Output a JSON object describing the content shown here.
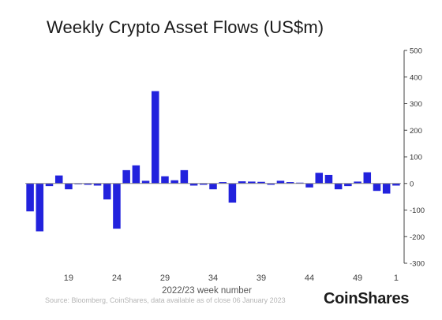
{
  "chart_data": {
    "type": "bar",
    "title": "Weekly Crypto Asset Flows (US$m)",
    "xlabel": "2022/23 week number",
    "ylabel": "",
    "ylim": [
      -300,
      500
    ],
    "yticks": [
      -300,
      -200,
      -100,
      0,
      100,
      200,
      300,
      400,
      500
    ],
    "xtick_labels": [
      "19",
      "24",
      "29",
      "34",
      "39",
      "44",
      "49",
      "1"
    ],
    "bar_color": "#2222dd",
    "grid": false,
    "y_axis_position": "right",
    "categories": [
      "15",
      "16",
      "17",
      "18",
      "19",
      "20",
      "21",
      "22",
      "23",
      "24",
      "25",
      "26",
      "27",
      "28",
      "29",
      "30",
      "31",
      "32",
      "33",
      "34",
      "35",
      "36",
      "37",
      "38",
      "39",
      "40",
      "41",
      "42",
      "43",
      "44",
      "45",
      "46",
      "47",
      "48",
      "49",
      "50",
      "51",
      "52",
      "1"
    ],
    "values": [
      -105,
      -180,
      -10,
      30,
      -22,
      0,
      -5,
      -8,
      -60,
      -170,
      50,
      68,
      10,
      347,
      27,
      12,
      50,
      -8,
      -5,
      -22,
      5,
      -72,
      8,
      7,
      6,
      -5,
      10,
      5,
      3,
      -15,
      40,
      32,
      -22,
      -10,
      7,
      42,
      -28,
      -38,
      -8
    ]
  },
  "source_note": "Source: Bloomberg, CoinShares, data available as of close 06 January 2023",
  "logo_text": "CoinShares"
}
